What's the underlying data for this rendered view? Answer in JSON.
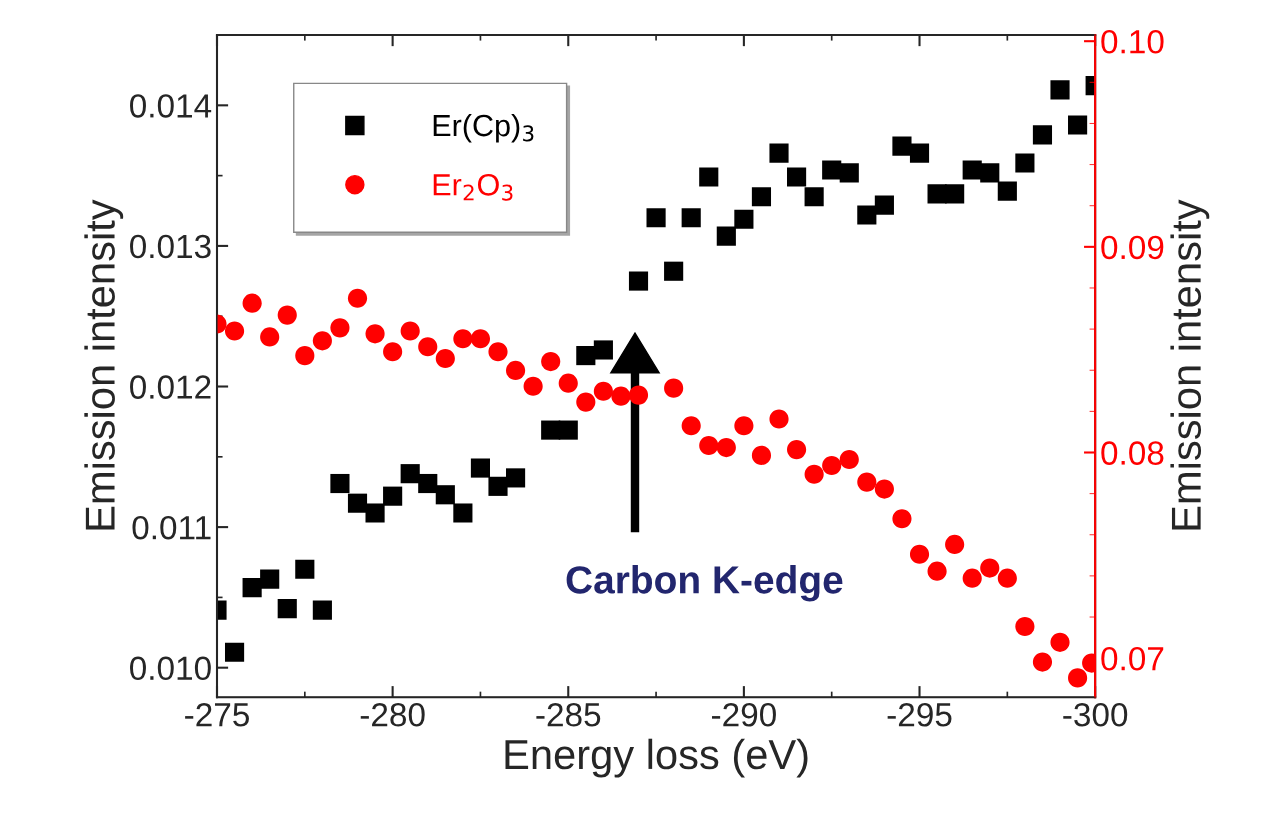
{
  "chart_data": {
    "type": "scatter",
    "xlabel": "Energy loss (eV)",
    "ylabel": "Emission intensity",
    "y2label": "Emission intensity",
    "xlim": [
      -275,
      -300
    ],
    "xticks": [
      -275,
      -280,
      -285,
      -290,
      -295,
      -300
    ],
    "ylim": [
      0.00979,
      0.0145
    ],
    "yticks": [
      {
        "value": 0.01,
        "label": "0.010"
      },
      0.011,
      0.012,
      0.013,
      0.014
    ],
    "y2lim": [
      0.0681,
      0.1003
    ],
    "y2ticks": [
      0.07,
      0.08,
      0.09,
      {
        "value": 0.1,
        "label": "0.10"
      }
    ],
    "legend": "top left",
    "grid": false,
    "annotations": [
      "Carbon K-edge"
    ],
    "series": [
      {
        "name": "Er(Cp)$_{3}$",
        "color": "#000000",
        "marker": "square",
        "x": [
          -275.0,
          -275.5,
          -276.0,
          -276.5,
          -277.0,
          -277.5,
          -278.0,
          -278.5,
          -279.0,
          -279.5,
          -280.0,
          -280.5,
          -281.0,
          -281.5,
          -282.0,
          -282.5,
          -283.0,
          -283.5,
          -284.5,
          -285.0,
          -285.5,
          -286.0,
          -287.0,
          -287.5,
          -288.0,
          -288.5,
          -289.0,
          -289.5,
          -290.0,
          -290.5,
          -291.0,
          -291.5,
          -292.0,
          -292.5,
          -293.0,
          -293.5,
          -294.0,
          -294.5,
          -295.0,
          -295.5,
          -296.0,
          -296.5,
          -297.0,
          -297.5,
          -298.0,
          -298.5,
          -299.0,
          -299.5,
          -300.0
        ],
        "values": [
          0.01041,
          0.01011,
          0.01057,
          0.01063,
          0.01042,
          0.0107,
          0.01041,
          0.01131,
          0.01117,
          0.0111,
          0.01122,
          0.01138,
          0.01131,
          0.01123,
          0.0111,
          0.01142,
          0.01129,
          0.01135,
          0.01169,
          0.01169,
          0.01222,
          0.01226,
          0.01275,
          0.0132,
          0.01282,
          0.0132,
          0.01349,
          0.01307,
          0.01319,
          0.01335,
          0.01366,
          0.01349,
          0.01335,
          0.01354,
          0.01352,
          0.01322,
          0.01329,
          0.01371,
          0.01366,
          0.01337,
          0.01337,
          0.01354,
          0.01352,
          0.01339,
          0.01359,
          0.01379,
          0.01411,
          0.01386,
          0.01414
        ]
      },
      {
        "name": "Er$_{2}$O$_{3}$",
        "color": "#ff0000",
        "marker": "circle",
        "axis": "y2",
        "x": [
          -275.0,
          -275.5,
          -276.0,
          -276.5,
          -277.0,
          -277.5,
          -278.0,
          -278.5,
          -279.0,
          -279.5,
          -280.0,
          -280.5,
          -281.0,
          -281.5,
          -282.0,
          -282.5,
          -283.0,
          -283.5,
          -284.0,
          -284.5,
          -285.0,
          -285.5,
          -286.0,
          -286.5,
          -287.0,
          -288.0,
          -288.5,
          -289.0,
          -289.5,
          -290.0,
          -290.5,
          -291.0,
          -291.5,
          -292.0,
          -292.5,
          -293.0,
          -293.5,
          -294.0,
          -294.5,
          -295.0,
          -295.5,
          -296.0,
          -296.5,
          -297.0,
          -297.5,
          -298.0,
          -298.5,
          -299.0,
          -299.5,
          -299.9
        ],
        "values": [
          0.08625,
          0.08591,
          0.08726,
          0.08562,
          0.08668,
          0.08471,
          0.08543,
          0.08606,
          0.0875,
          0.08577,
          0.0849,
          0.08591,
          0.08514,
          0.08457,
          0.08553,
          0.08553,
          0.0849,
          0.08399,
          0.08322,
          0.08442,
          0.08337,
          0.08245,
          0.08298,
          0.08274,
          0.08279,
          0.08313,
          0.0813,
          0.08034,
          0.08024,
          0.0813,
          0.07986,
          0.08163,
          0.08014,
          0.07894,
          0.07937,
          0.07966,
          0.07856,
          0.07822,
          0.07678,
          0.07505,
          0.07423,
          0.07553,
          0.07389,
          0.07438,
          0.07389,
          0.07154,
          0.06981,
          0.07077,
          0.06904,
          0.06976
        ]
      }
    ]
  }
}
